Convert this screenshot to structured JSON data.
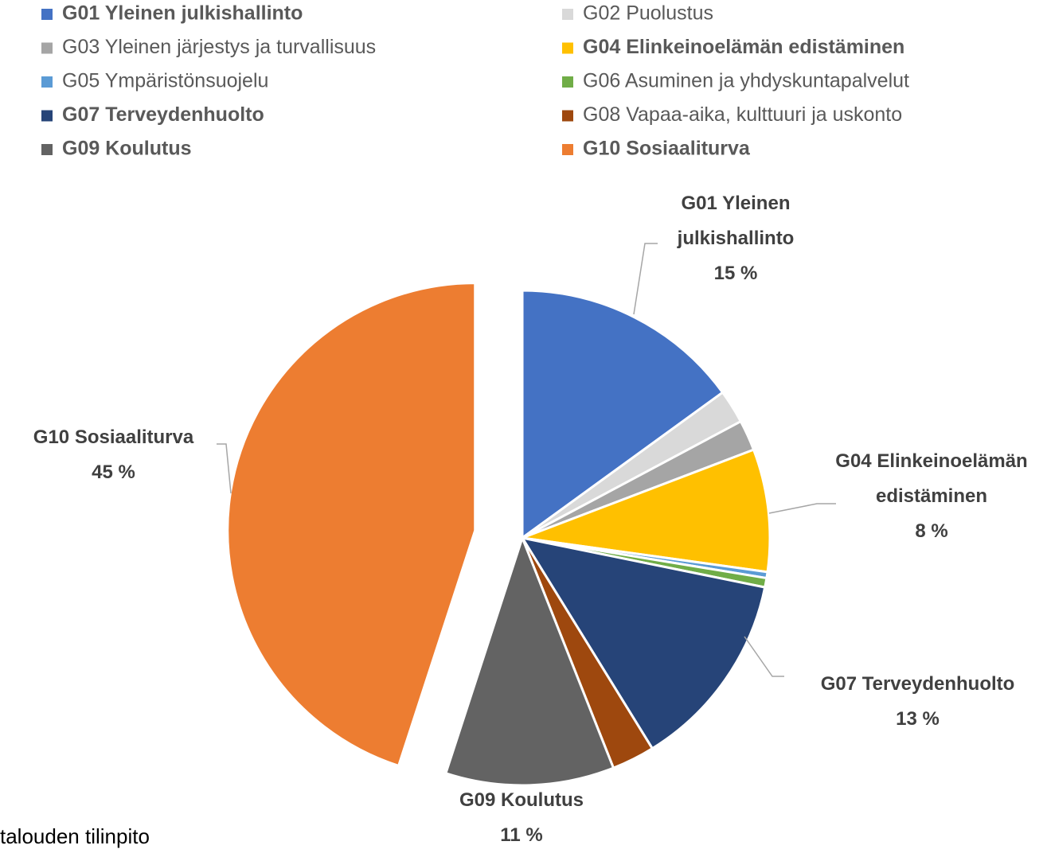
{
  "chart_data": {
    "type": "pie",
    "categories": [
      "G01 Yleinen julkishallinto",
      "G02 Puolustus",
      "G03 Yleinen järjestys ja turvallisuus",
      "G04 Elinkeinoelämän edistäminen",
      "G05 Ympäristönsuojelu",
      "G06 Asuminen ja yhdyskuntapalvelut",
      "G07 Terveydenhuolto",
      "G08 Vapaa-aika, kulttuuri ja uskonto",
      "G09 Koulutus",
      "G10 Sosiaaliturva"
    ],
    "values": [
      15,
      2.2,
      2,
      8,
      0.4,
      0.6,
      13,
      2.8,
      11,
      45
    ],
    "value_labels": [
      "15 %",
      null,
      null,
      "8 %",
      null,
      null,
      "13 %",
      null,
      "11 %",
      "45 %"
    ],
    "colors": [
      "#4472c4",
      "#d9d9d9",
      "#a5a5a5",
      "#ffc000",
      "#5b9bd5",
      "#70ad47",
      "#264478",
      "#9e480e",
      "#636363",
      "#ed7d31"
    ],
    "exploded": [
      false,
      false,
      false,
      false,
      false,
      false,
      false,
      false,
      false,
      true
    ],
    "legend": "top"
  },
  "footer_text": "talouden tilinpito"
}
